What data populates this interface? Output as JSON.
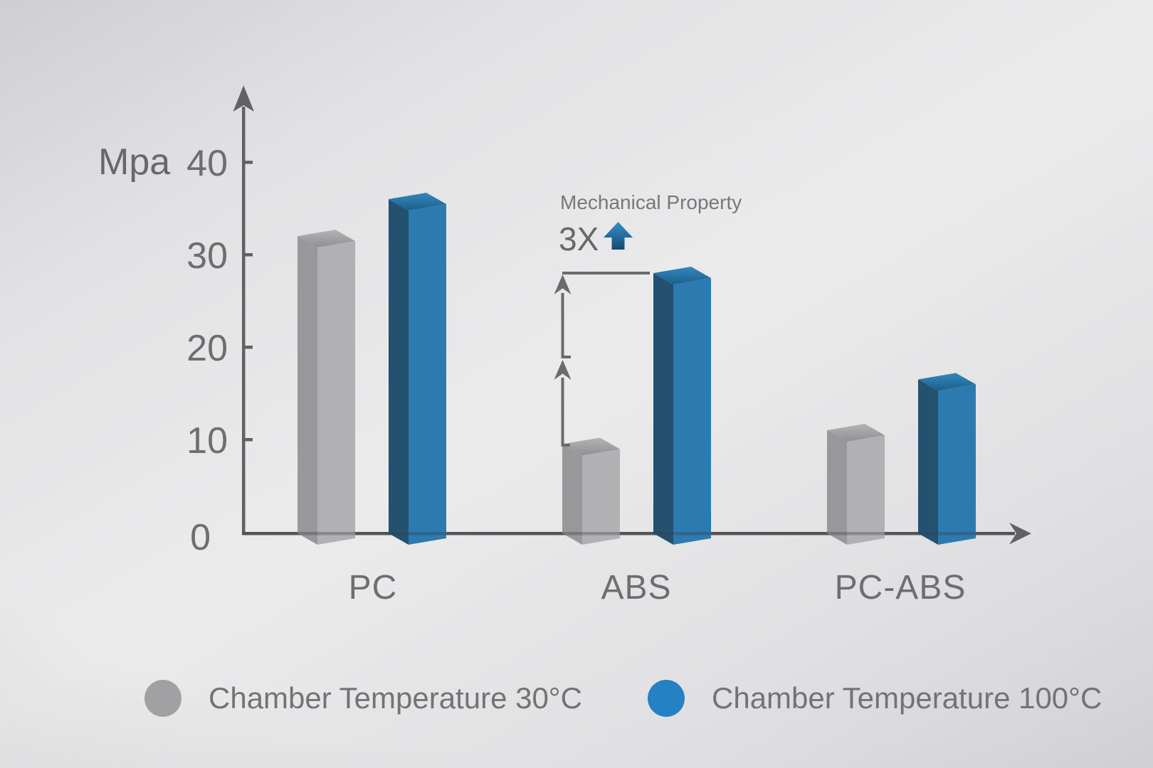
{
  "chart_data": {
    "type": "bar",
    "title": "",
    "unit_label": "Mpa",
    "categories": [
      "PC",
      "ABS",
      "PC-ABS"
    ],
    "yticks": [
      0,
      10,
      20,
      30,
      40
    ],
    "ylim": [
      0,
      45
    ],
    "grid": false,
    "legend_position": "bottom",
    "series": [
      {
        "key": "30c",
        "name": "Chamber Temperature 30°C",
        "legend_color": "#a1a1a3",
        "values": [
          32,
          9.5,
          11
        ],
        "colors": {
          "left": "#98989b",
          "front": "#b1b1b4",
          "top_front": "#909093",
          "top_back": "#b4b4b6"
        }
      },
      {
        "key": "100c",
        "name": "Chamber Temperature 100°C",
        "legend_color": "#2481c4",
        "values": [
          36,
          28,
          16.5
        ],
        "colors": {
          "left": "#24516f",
          "front": "#2d7ab1",
          "top_front": "#1b608c",
          "top_back": "#3487bc"
        }
      }
    ],
    "annotation": {
      "label": "Mechanical Property",
      "multiplier": "3X",
      "applies_to": "ABS",
      "arrow_color": "#2277b4"
    }
  },
  "axis_color": "#626265",
  "dimension_line_color": "#6b6b6e"
}
